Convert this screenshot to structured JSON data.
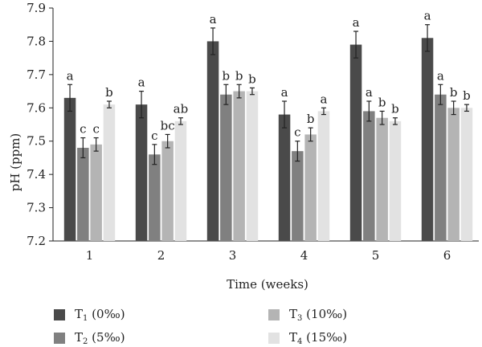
{
  "chart_data": {
    "type": "bar",
    "title": "",
    "xlabel": "Time (weeks)",
    "ylabel": "pH (ppm)",
    "ylim": [
      7.2,
      7.9
    ],
    "yticks": [
      "7.2",
      "7.3",
      "7.4",
      "7.5",
      "7.6",
      "7.7",
      "7.8",
      "7.9"
    ],
    "categories": [
      "1",
      "2",
      "3",
      "4",
      "5",
      "6"
    ],
    "series": [
      {
        "name": "T1 (0‰)",
        "base": "T",
        "sub": "1",
        "suffix": "(0‰)",
        "color": "#4a4a4a",
        "values": [
          7.63,
          7.61,
          7.8,
          7.58,
          7.79,
          7.81
        ],
        "errors": [
          0.04,
          0.04,
          0.04,
          0.04,
          0.04,
          0.04
        ],
        "letters": [
          "a",
          "a",
          "a",
          "a",
          "a",
          "a"
        ]
      },
      {
        "name": "T2 (5‰)",
        "base": "T",
        "sub": "2",
        "suffix": "(5‰)",
        "color": "#808080",
        "values": [
          7.48,
          7.46,
          7.64,
          7.47,
          7.59,
          7.64
        ],
        "errors": [
          0.03,
          0.03,
          0.03,
          0.03,
          0.03,
          0.03
        ],
        "letters": [
          "c",
          "c",
          "b",
          "c",
          "a",
          "a"
        ]
      },
      {
        "name": "T3 (10‰)",
        "base": "T",
        "sub": "3",
        "suffix": "(10‰)",
        "color": "#b4b4b4",
        "values": [
          7.49,
          7.5,
          7.65,
          7.52,
          7.57,
          7.6
        ],
        "errors": [
          0.02,
          0.02,
          0.02,
          0.02,
          0.02,
          0.02
        ],
        "letters": [
          "c",
          "bc",
          "b",
          "b",
          "b",
          "b"
        ]
      },
      {
        "name": "T4 (15‰)",
        "base": "T",
        "sub": "4",
        "suffix": "(15‰)",
        "color": "#e2e2e2",
        "values": [
          7.61,
          7.56,
          7.65,
          7.59,
          7.56,
          7.6
        ],
        "errors": [
          0.01,
          0.01,
          0.01,
          0.01,
          0.01,
          0.01
        ],
        "letters": [
          "b",
          "ab",
          "b",
          "a",
          "b",
          "b"
        ]
      }
    ],
    "legend_position": "bottom"
  }
}
